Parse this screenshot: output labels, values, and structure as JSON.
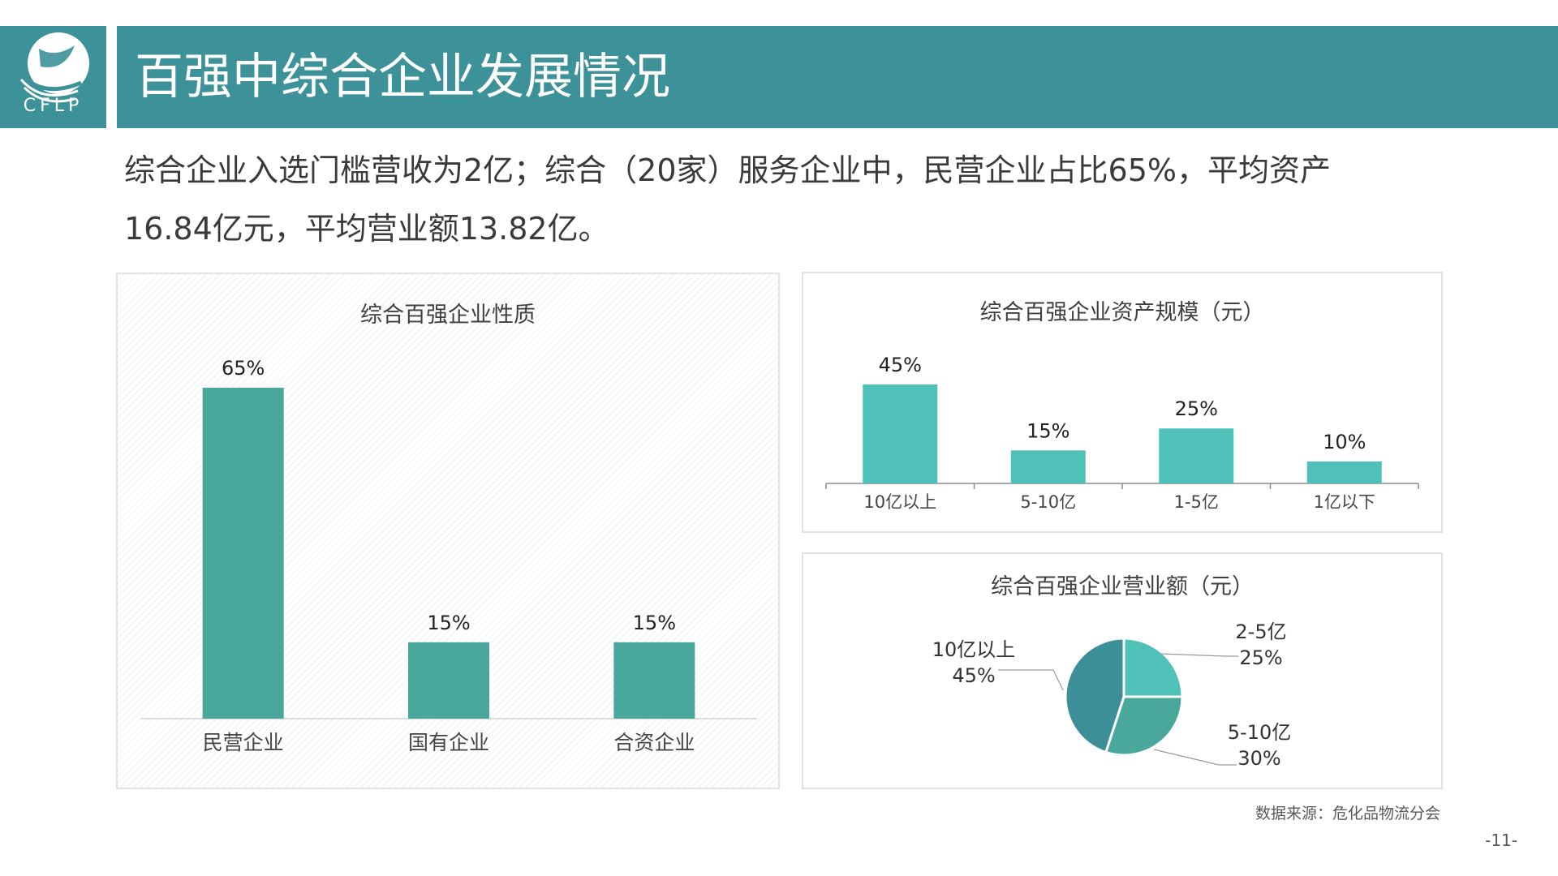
{
  "logo": {
    "text": "CFLP"
  },
  "header": {
    "title": "百强中综合企业发展情况"
  },
  "summary": "综合企业入选门槛营收为2亿；综合（20家）服务企业中，民营企业占比65%，平均资产16.84亿元，平均营业额13.82亿。",
  "footer": {
    "source": "数据来源：危化品物流分会",
    "page": "-11-"
  },
  "colors": {
    "header": "#3d9199",
    "bar_dark": "#4aa79b",
    "bar_light": "#4fc1b8",
    "pie_slices": [
      "#4fc1b8",
      "#49a79b",
      "#3c8e98"
    ]
  },
  "chart_data": [
    {
      "type": "bar",
      "title": "综合百强企业性质",
      "categories": [
        "民营企业",
        "国有企业",
        "合资企业"
      ],
      "values": [
        65,
        15,
        15
      ],
      "labels": [
        "65%",
        "15%",
        "15%"
      ],
      "ylim": [
        0,
        65
      ]
    },
    {
      "type": "bar",
      "title": "综合百强企业资产规模（元）",
      "categories": [
        "10亿以上",
        "5-10亿",
        "1-5亿",
        "1亿以下"
      ],
      "values": [
        45,
        15,
        25,
        10
      ],
      "labels": [
        "45%",
        "15%",
        "25%",
        "10%"
      ],
      "ylim": [
        0,
        45
      ]
    },
    {
      "type": "pie",
      "title": "综合百强企业营业额（元）",
      "slices": [
        {
          "label": "2-5亿",
          "value": 25,
          "pct": "25%"
        },
        {
          "label": "5-10亿",
          "value": 30,
          "pct": "30%"
        },
        {
          "label": "10亿以上",
          "value": 45,
          "pct": "45%"
        }
      ]
    }
  ]
}
